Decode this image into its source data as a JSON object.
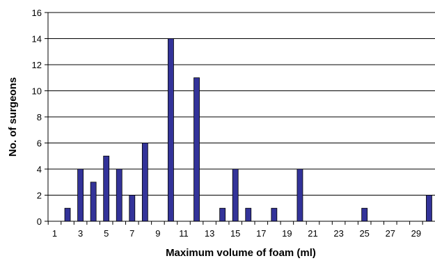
{
  "chart_data": {
    "type": "bar",
    "title": "",
    "xlabel": "Maximum volume of foam (ml)",
    "ylabel": "No. of surgeons",
    "ylim": [
      0,
      16
    ],
    "y_ticks": [
      0,
      2,
      4,
      6,
      8,
      10,
      12,
      14,
      16
    ],
    "x_range": [
      1,
      30
    ],
    "x_ticks": [
      1,
      3,
      5,
      7,
      9,
      11,
      13,
      15,
      17,
      19,
      21,
      23,
      25,
      27,
      29
    ],
    "grid": "horizontal",
    "colors": {
      "bar_fill": "#333399",
      "bar_stroke": "#000000",
      "gridline": "#000000",
      "background": "#ffffff"
    },
    "points": [
      {
        "x": 2,
        "y": 1
      },
      {
        "x": 3,
        "y": 4
      },
      {
        "x": 4,
        "y": 3
      },
      {
        "x": 5,
        "y": 5
      },
      {
        "x": 6,
        "y": 4
      },
      {
        "x": 7,
        "y": 2
      },
      {
        "x": 8,
        "y": 6
      },
      {
        "x": 10,
        "y": 14
      },
      {
        "x": 12,
        "y": 11
      },
      {
        "x": 14,
        "y": 1
      },
      {
        "x": 15,
        "y": 4
      },
      {
        "x": 16,
        "y": 1
      },
      {
        "x": 18,
        "y": 1
      },
      {
        "x": 20,
        "y": 4
      },
      {
        "x": 25,
        "y": 1
      },
      {
        "x": 30,
        "y": 2
      }
    ]
  }
}
